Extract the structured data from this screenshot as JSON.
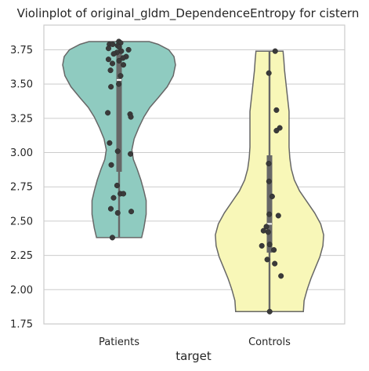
{
  "chart_data": {
    "type": "violin",
    "title": "Violinplot of original_gldm_DependenceEntropy for cistern",
    "xlabel": "target",
    "ylabel": "",
    "ylim": [
      1.75,
      3.93
    ],
    "yticks": [
      "1.75",
      "2.00",
      "2.25",
      "2.50",
      "2.75",
      "3.00",
      "3.25",
      "3.50",
      "3.75"
    ],
    "grid": true,
    "categories": [
      "Patients",
      "Controls"
    ],
    "colors": [
      "#8fcbc0",
      "#f8f7b8"
    ],
    "groups": [
      {
        "name": "Patients",
        "min": 2.38,
        "q1": 2.86,
        "median": 3.53,
        "q3": 3.74,
        "max": 3.81,
        "density": [
          [
            2.38,
            0.3
          ],
          [
            2.45,
            0.33
          ],
          [
            2.55,
            0.36
          ],
          [
            2.65,
            0.36
          ],
          [
            2.72,
            0.33
          ],
          [
            2.8,
            0.29
          ],
          [
            2.88,
            0.24
          ],
          [
            2.95,
            0.19
          ],
          [
            3.02,
            0.17
          ],
          [
            3.1,
            0.2
          ],
          [
            3.18,
            0.26
          ],
          [
            3.26,
            0.33
          ],
          [
            3.33,
            0.41
          ],
          [
            3.4,
            0.52
          ],
          [
            3.48,
            0.64
          ],
          [
            3.56,
            0.72
          ],
          [
            3.64,
            0.75
          ],
          [
            3.7,
            0.73
          ],
          [
            3.75,
            0.66
          ],
          [
            3.79,
            0.52
          ],
          [
            3.81,
            0.4
          ]
        ],
        "points": [
          3.81,
          3.8,
          3.79,
          3.79,
          3.78,
          3.77,
          3.76,
          3.75,
          3.74,
          3.73,
          3.72,
          3.7,
          3.69,
          3.68,
          3.67,
          3.65,
          3.64,
          3.6,
          3.56,
          3.5,
          3.48,
          3.29,
          3.28,
          3.26,
          3.07,
          3.01,
          2.99,
          2.91,
          2.76,
          2.7,
          2.7,
          2.67,
          2.59,
          2.57,
          2.56,
          2.38
        ]
      },
      {
        "name": "Controls",
        "min": 1.84,
        "q1": 2.27,
        "median": 2.48,
        "q3": 2.98,
        "max": 3.74,
        "density": [
          [
            1.84,
            0.45
          ],
          [
            1.92,
            0.46
          ],
          [
            2.0,
            0.5
          ],
          [
            2.08,
            0.55
          ],
          [
            2.16,
            0.61
          ],
          [
            2.24,
            0.67
          ],
          [
            2.32,
            0.71
          ],
          [
            2.4,
            0.72
          ],
          [
            2.48,
            0.68
          ],
          [
            2.56,
            0.6
          ],
          [
            2.64,
            0.5
          ],
          [
            2.72,
            0.4
          ],
          [
            2.8,
            0.33
          ],
          [
            2.88,
            0.29
          ],
          [
            2.96,
            0.27
          ],
          [
            3.04,
            0.26
          ],
          [
            3.12,
            0.26
          ],
          [
            3.2,
            0.26
          ],
          [
            3.3,
            0.26
          ],
          [
            3.4,
            0.24
          ],
          [
            3.5,
            0.22
          ],
          [
            3.6,
            0.2
          ],
          [
            3.68,
            0.19
          ],
          [
            3.74,
            0.18
          ]
        ],
        "points": [
          3.74,
          3.58,
          3.31,
          3.18,
          3.16,
          2.92,
          2.79,
          2.68,
          2.55,
          2.54,
          2.46,
          2.43,
          2.42,
          2.33,
          2.32,
          2.29,
          2.22,
          2.19,
          2.1,
          1.84
        ]
      }
    ]
  }
}
